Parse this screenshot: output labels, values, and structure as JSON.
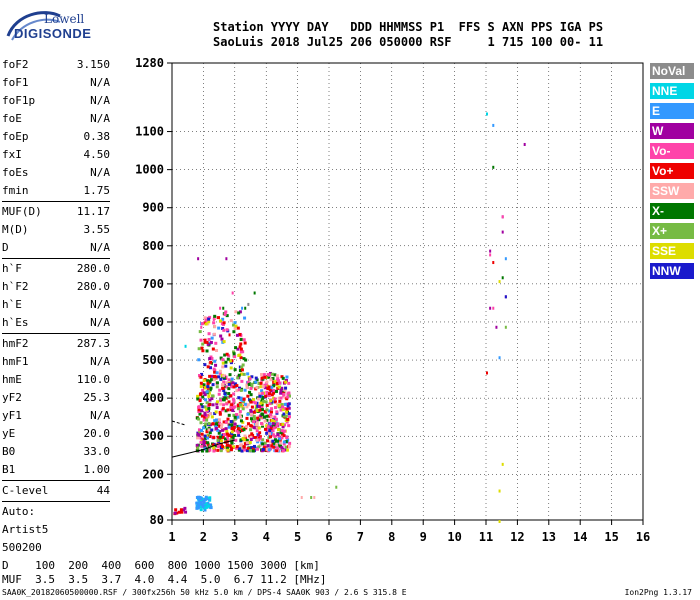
{
  "brand": {
    "top": "Lowell",
    "main": "DIGISONDE"
  },
  "header": {
    "line1": "Station YYYY DAY   DDD HHMMSS P1  FFS S AXN PPS IGA PS",
    "line2": "SaoLuis 2018 Jul25 206 050000 RSF     1 715 100 00- 11"
  },
  "params": [
    [
      {
        "label": "foF2",
        "value": "3.150"
      },
      {
        "label": "foF1",
        "value": "N/A"
      },
      {
        "label": "foF1p",
        "value": "N/A"
      },
      {
        "label": "foE",
        "value": "N/A"
      },
      {
        "label": "foEp",
        "value": "0.38"
      },
      {
        "label": "fxI",
        "value": "4.50"
      },
      {
        "label": "foEs",
        "value": "N/A"
      },
      {
        "label": "fmin",
        "value": "1.75"
      }
    ],
    [
      {
        "label": "MUF(D)",
        "value": "11.17"
      },
      {
        "label": "M(D)",
        "value": "3.55"
      },
      {
        "label": "D",
        "value": "N/A"
      }
    ],
    [
      {
        "label": "h`F",
        "value": "280.0"
      },
      {
        "label": "h`F2",
        "value": "280.0"
      },
      {
        "label": "h`E",
        "value": "N/A"
      },
      {
        "label": "h`Es",
        "value": "N/A"
      }
    ],
    [
      {
        "label": "hmF2",
        "value": "287.3"
      },
      {
        "label": "hmF1",
        "value": "N/A"
      },
      {
        "label": "hmE",
        "value": "110.0"
      },
      {
        "label": "yF2",
        "value": "25.3"
      },
      {
        "label": "yF1",
        "value": "N/A"
      },
      {
        "label": "yE",
        "value": "20.0"
      },
      {
        "label": "B0",
        "value": "33.0"
      },
      {
        "label": "B1",
        "value": "1.00"
      }
    ],
    [
      {
        "label": "C-level",
        "value": "44"
      }
    ],
    [
      {
        "label": "Auto:",
        "value": ""
      },
      {
        "label": "Artist5",
        "value": ""
      },
      {
        "label": "500200",
        "value": ""
      }
    ]
  ],
  "footer": {
    "d_row": "D    100  200  400  600  800 1000 1500 3000 [km]",
    "muf_row": "MUF  3.5  3.5  3.7  4.0  4.4  5.0  6.7 11.2 [MHz]",
    "file_line": "SAA0K_20182060500000.RSF / 300fx256h 50 kHz 5.0 km / DPS-4 SAA0K 903 / 2.6 S 315.8 E",
    "version": "Ion2Png 1.3.17"
  },
  "legend": [
    {
      "label": "NoVal",
      "color": "#8c8c8c"
    },
    {
      "label": "NNE",
      "color": "#00d6e6"
    },
    {
      "label": "E",
      "color": "#3399ff"
    },
    {
      "label": "W",
      "color": "#a000a0"
    },
    {
      "label": "Vo-",
      "color": "#ff44aa"
    },
    {
      "label": "Vo+",
      "color": "#ee0000"
    },
    {
      "label": "SSW",
      "color": "#ffaaaa"
    },
    {
      "label": "X-",
      "color": "#007700"
    },
    {
      "label": "X+",
      "color": "#77bb44"
    },
    {
      "label": "SSE",
      "color": "#dddd00"
    },
    {
      "label": "NNW",
      "color": "#1a1acc"
    }
  ],
  "chart_data": {
    "type": "scatter",
    "xlim": [
      1,
      16
    ],
    "x_ticks": [
      1,
      2,
      3,
      4,
      5,
      6,
      7,
      8,
      9,
      10,
      11,
      12,
      13,
      14,
      15,
      16
    ],
    "ylim": [
      80,
      1280
    ],
    "y_ticks": [
      80,
      200,
      300,
      400,
      500,
      600,
      700,
      800,
      900,
      1000,
      1100,
      1280
    ],
    "grid": true,
    "trace_line": [
      [
        1,
        245
      ],
      [
        1.5,
        255
      ],
      [
        2,
        265
      ],
      [
        2.5,
        280
      ],
      [
        3,
        290
      ]
    ],
    "trace_line_upper": [
      [
        1,
        340
      ],
      [
        1.4,
        330
      ]
    ],
    "series": [
      {
        "name": "W",
        "color": "#a000a0",
        "points": [
          [
            1.8,
            770
          ],
          [
            2.7,
            770
          ],
          [
            11.1,
            640
          ],
          [
            11.3,
            590
          ],
          [
            11.5,
            880
          ],
          [
            11.5,
            840
          ],
          [
            11.6,
            670
          ],
          [
            11.1,
            790
          ],
          [
            12.2,
            1070
          ]
        ]
      },
      {
        "name": "Vo-",
        "color": "#ff44aa",
        "points": [
          [
            1.9,
            590
          ],
          [
            2.3,
            610
          ],
          [
            2.5,
            640
          ],
          [
            2.9,
            680
          ],
          [
            11.2,
            640
          ],
          [
            11.5,
            880
          ],
          [
            11.1,
            780
          ]
        ]
      },
      {
        "name": "Vo+",
        "color": "#ee0000",
        "points": [
          [
            2.1,
            550
          ],
          [
            2.8,
            570
          ],
          [
            11.0,
            470
          ],
          [
            11.2,
            760
          ]
        ]
      },
      {
        "name": "E",
        "color": "#3399ff",
        "points": [
          [
            11.2,
            1120
          ],
          [
            11.6,
            770
          ],
          [
            11.4,
            510
          ],
          [
            3.2,
            640
          ]
        ]
      },
      {
        "name": "NNE",
        "color": "#00d6e6",
        "points": [
          [
            11.0,
            1150
          ],
          [
            1.4,
            540
          ]
        ]
      },
      {
        "name": "X-",
        "color": "#007700",
        "points": [
          [
            11.2,
            1010
          ],
          [
            3.6,
            680
          ],
          [
            3.3,
            640
          ],
          [
            2.6,
            640
          ],
          [
            11.5,
            720
          ]
        ]
      },
      {
        "name": "X+",
        "color": "#77bb44",
        "points": [
          [
            11.6,
            590
          ],
          [
            5.4,
            143
          ],
          [
            6.2,
            170
          ]
        ]
      },
      {
        "name": "SSE",
        "color": "#dddd00",
        "points": [
          [
            11.4,
            710
          ],
          [
            11.5,
            230
          ],
          [
            11.4,
            160
          ],
          [
            11.4,
            80
          ]
        ]
      },
      {
        "name": "SSW",
        "color": "#ffaaaa",
        "points": [
          [
            5.1,
            143
          ],
          [
            5.5,
            143
          ]
        ]
      },
      {
        "name": "NNW",
        "color": "#1a1acc",
        "points": [
          [
            11.6,
            670
          ]
        ]
      },
      {
        "name": "NoVal",
        "color": "#8c8c8c",
        "points": [
          [
            3.4,
            650
          ]
        ]
      }
    ],
    "clusters": [
      {
        "xmin": 1.75,
        "xmax": 4.7,
        "ymin": 265,
        "ymax": 470,
        "count": 900
      },
      {
        "xmin": 1.8,
        "xmax": 2.6,
        "ymin": 470,
        "ymax": 620,
        "count": 70
      },
      {
        "xmin": 2.6,
        "xmax": 3.3,
        "ymin": 470,
        "ymax": 640,
        "count": 60
      },
      {
        "xmin": 1.7,
        "xmax": 2.2,
        "ymin": 110,
        "ymax": 145,
        "count": 60
      },
      {
        "xmin": 1.0,
        "xmax": 1.4,
        "ymin": 100,
        "ymax": 115,
        "count": 10
      }
    ]
  }
}
